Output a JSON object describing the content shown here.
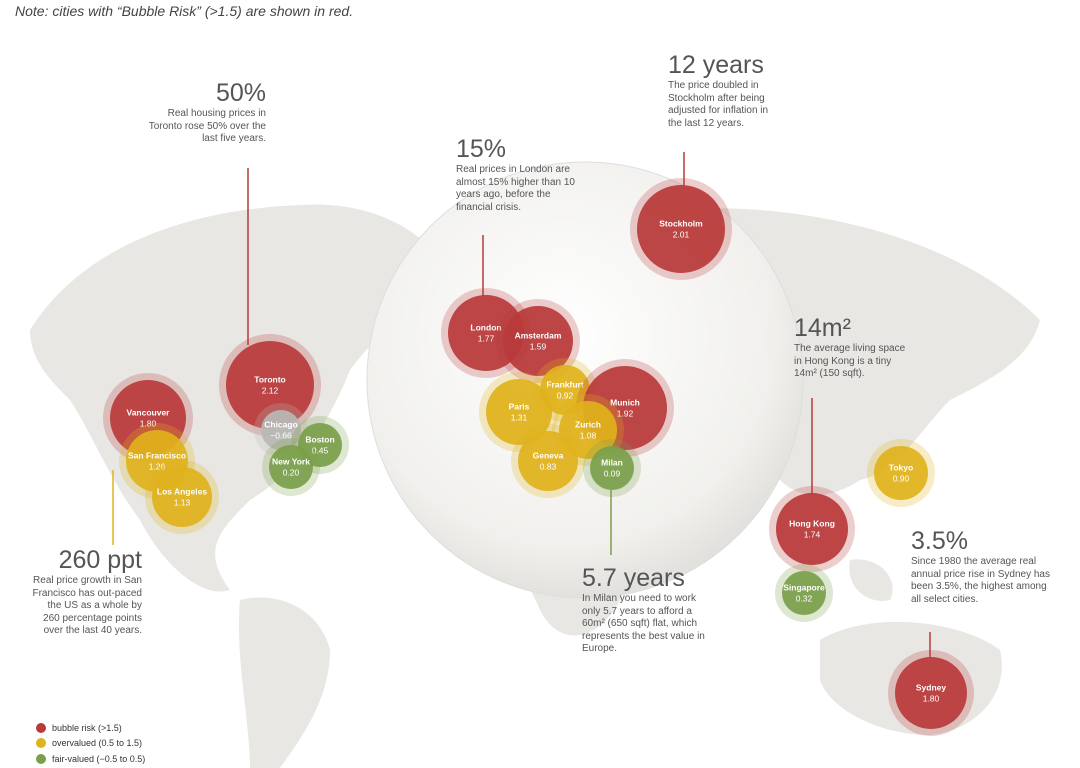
{
  "note": "Note: cities with  “Bubble Risk”  (>1.5) are shown in red.",
  "cities": [
    {
      "name": "Vancouver",
      "value": "1.80",
      "color": "#b83a3a"
    },
    {
      "name": "San Francisco",
      "value": "1.26",
      "color": "#e0b21c"
    },
    {
      "name": "Los Angeles",
      "value": "1.13",
      "color": "#e0b21c"
    },
    {
      "name": "Toronto",
      "value": "2.12",
      "color": "#b83a3a"
    },
    {
      "name": "Chicago",
      "value": "−0.66",
      "color": "#b8b8b4"
    },
    {
      "name": "Boston",
      "value": "0.45",
      "color": "#7aa04a"
    },
    {
      "name": "New York",
      "value": "0.20",
      "color": "#7aa04a"
    },
    {
      "name": "London",
      "value": "1.77",
      "color": "#b83a3a"
    },
    {
      "name": "Amsterdam",
      "value": "1.59",
      "color": "#b83a3a"
    },
    {
      "name": "Frankfurt",
      "value": "0.92",
      "color": "#e0b21c"
    },
    {
      "name": "Paris",
      "value": "1.31",
      "color": "#e0b21c"
    },
    {
      "name": "Munich",
      "value": "1.92",
      "color": "#b83a3a"
    },
    {
      "name": "Zurich",
      "value": "1.08",
      "color": "#e0b21c"
    },
    {
      "name": "Geneva",
      "value": "0.83",
      "color": "#e0b21c"
    },
    {
      "name": "Milan",
      "value": "0.09",
      "color": "#7aa04a"
    },
    {
      "name": "Stockholm",
      "value": "2.01",
      "color": "#b83a3a"
    },
    {
      "name": "Hong Kong",
      "value": "1.74",
      "color": "#b83a3a"
    },
    {
      "name": "Singapore",
      "value": "0.32",
      "color": "#7aa04a"
    },
    {
      "name": "Tokyo",
      "value": "0.90",
      "color": "#e0b21c"
    },
    {
      "name": "Sydney",
      "value": "1.80",
      "color": "#b83a3a"
    }
  ],
  "annotations": [
    {
      "headline": "50%",
      "text": "Real housing prices in Toronto rose 50% over the last five years."
    },
    {
      "headline": "15%",
      "text": "Real prices in London are almost 15% higher than 10 years ago, before the financial crisis."
    },
    {
      "headline": "12 years",
      "text": "The price doubled in Stockholm after being adjusted for inflation in the last 12 years."
    },
    {
      "headline": "14m²",
      "text": "The average living space in Hong Kong is a tiny 14m² (150 sqft)."
    },
    {
      "headline": "3.5%",
      "text": "Since 1980 the average real annual price rise in Sydney has been 3.5%, the highest among all select cities."
    },
    {
      "headline": "5.7 years",
      "text": "In Milan you need to work only 5.7 years to afford a 60m² (650 sqft) flat, which represents the best value in Europe."
    },
    {
      "headline": "260 ppt",
      "text": "Real price growth in San Francisco has out-paced the US as a whole by 260 percentage points over the last 40 years."
    }
  ],
  "legend": [
    {
      "label": "bubble risk (>1.5)",
      "color": "#b83a3a"
    },
    {
      "label": "overvalued (0.5 to 1.5)",
      "color": "#e0b21c"
    },
    {
      "label": "fair-valued (−0.5 to 0.5)",
      "color": "#7aa04a"
    }
  ]
}
